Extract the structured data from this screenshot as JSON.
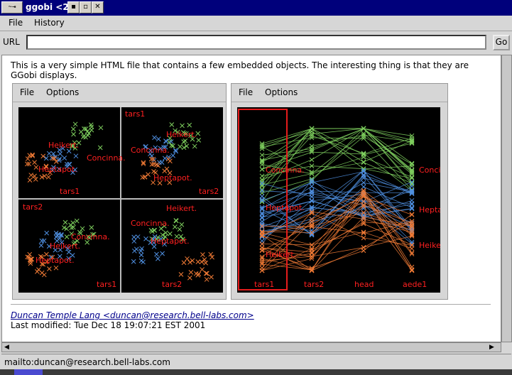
{
  "window": {
    "title": "ggobi <2>",
    "icon_glyph": "~⇥",
    "btn_min": "▪",
    "btn_max": "▫",
    "btn_close": "✕"
  },
  "menubar": {
    "file": "File",
    "history": "History"
  },
  "urlbar": {
    "label": "URL",
    "value": "",
    "go": "Go"
  },
  "content": {
    "intro": "This is a very simple HTML file that contains a few embedded objects. The interesting thing is that they are GGobi displays.",
    "author_link": "Duncan Temple Lang <duncan@research.bell-labs.com>",
    "modified": "Last modified: Tue Dec 18 19:07:21 EST 2001"
  },
  "embed_left": {
    "menu": {
      "file": "File",
      "options": "Options"
    },
    "panels": {
      "tl": {
        "labels": [
          "Heikert.",
          "Concinna.",
          "Heptapot."
        ],
        "axis": "tars1"
      },
      "tr": {
        "title": "tars1",
        "labels": [
          "Heikert.",
          "Concinna.",
          "Heptapot."
        ],
        "axis": "tars2"
      },
      "bl": {
        "title": "tars2",
        "labels": [
          "Concinna.",
          "Heikert.",
          "Heptapot."
        ],
        "axis": "tars1"
      },
      "br": {
        "labels": [
          "Heikert.",
          "Concinna.",
          "Heptapot."
        ],
        "axis": "tars2"
      }
    }
  },
  "embed_right": {
    "menu": {
      "file": "File",
      "options": "Options"
    },
    "axes": [
      "tars1",
      "tars2",
      "head",
      "aede1"
    ],
    "species": [
      "Concinna.",
      "Heptapot.",
      "Heikert."
    ],
    "left_labels": [
      "Concinna.",
      "Heptapot.",
      "Heikert."
    ]
  },
  "colors": {
    "green": "#7ecf5e",
    "blue": "#4f8fe0",
    "orange": "#f07a35",
    "red": "#e51c1c",
    "label": "#ff2020"
  },
  "statusbar": {
    "text": "mailto:duncan@research.bell-labs.com"
  }
}
